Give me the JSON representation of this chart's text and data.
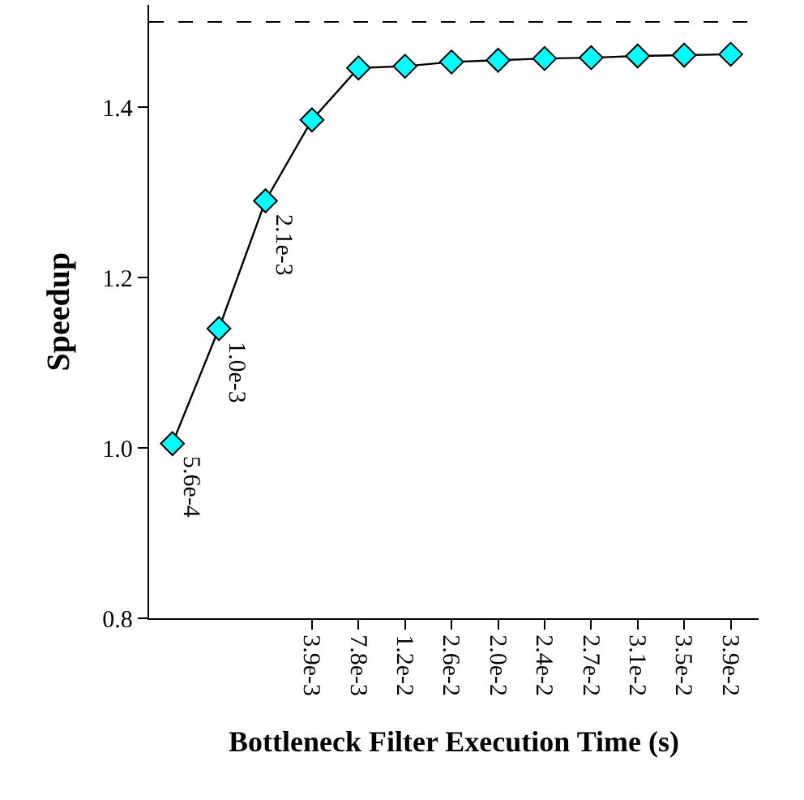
{
  "chart_data": {
    "type": "line",
    "xlabel": "Bottleneck Filter Execution Time (s)",
    "ylabel": "Speedup",
    "categories": [
      null,
      null,
      null,
      "3.9e-3",
      "7.8e-3",
      "1.2e-2",
      "2.6e-2",
      "2.0e-2",
      "2.4e-2",
      "2.7e-2",
      "3.1e-2",
      "3.5e-2",
      "3.9e-2"
    ],
    "series": [
      {
        "color": "#00ffff",
        "values": [
          1.005,
          1.14,
          1.29,
          1.385,
          1.446,
          1.448,
          1.453,
          1.455,
          1.457,
          1.458,
          1.46,
          1.461,
          1.462
        ]
      }
    ],
    "ylim": [
      0.8,
      1.52
    ],
    "yticks": [
      0.8,
      {
        "value": 1,
        "label": "1.0"
      },
      1.2,
      1.4
    ],
    "ref_lines": [
      {
        "axis": "y",
        "value": 1.5,
        "line_style": "dashed",
        "color": "#000000"
      }
    ],
    "annotations": [
      {
        "text": "5.6e-4",
        "y": 1.005
      },
      {
        "text": "1.0e-3",
        "y": 1.14
      },
      {
        "text": "2.1e-3",
        "y": 1.29
      }
    ],
    "marker": "diamond",
    "line_style": "solid"
  }
}
